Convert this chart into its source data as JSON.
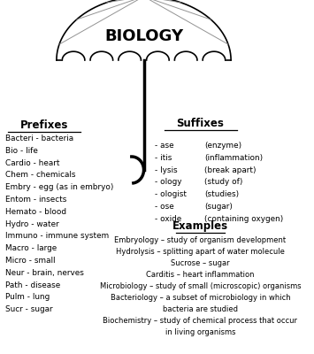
{
  "title": "BIOLOGY",
  "bg_color": "#ffffff",
  "prefixes_title": "Prefixes",
  "suffixes_title": "Suffixes",
  "examples_title": "Examples",
  "prefixes": [
    "Bacteri - bacteria",
    "Bio - life",
    "Cardio - heart",
    "Chem - chemicals",
    "Embry - egg (as in embryo)",
    "Entom - insects",
    "Hemato - blood",
    "Hydro - water",
    "Immuno - immune system",
    "Macro - large",
    "Micro - small",
    "Neur - brain, nerves",
    "Path - disease",
    "Pulm - lung",
    "Sucr - sugar"
  ],
  "suffixes_left": [
    "- ase",
    "- itis",
    "- lysis",
    "- ology",
    "- ologist",
    "- ose",
    "- oxide"
  ],
  "suffixes_right": [
    "(enzyme)",
    "(inflammation)",
    "(break apart)",
    "(study of)",
    "(studies)",
    "(sugar)",
    "(containing oxygen)"
  ],
  "examples": [
    "Embryology – study of organism development",
    "Hydrolysis – splitting apart of water molecule",
    "Sucrose – sugar",
    "Carditis – heart inflammation",
    "Microbiology – study of small (microscopic) organisms",
    "Bacteriology – a subset of microbiology in which",
    "bacteria are studied",
    "Biochemistry – study of chemical process that occur",
    "in living organisms"
  ]
}
